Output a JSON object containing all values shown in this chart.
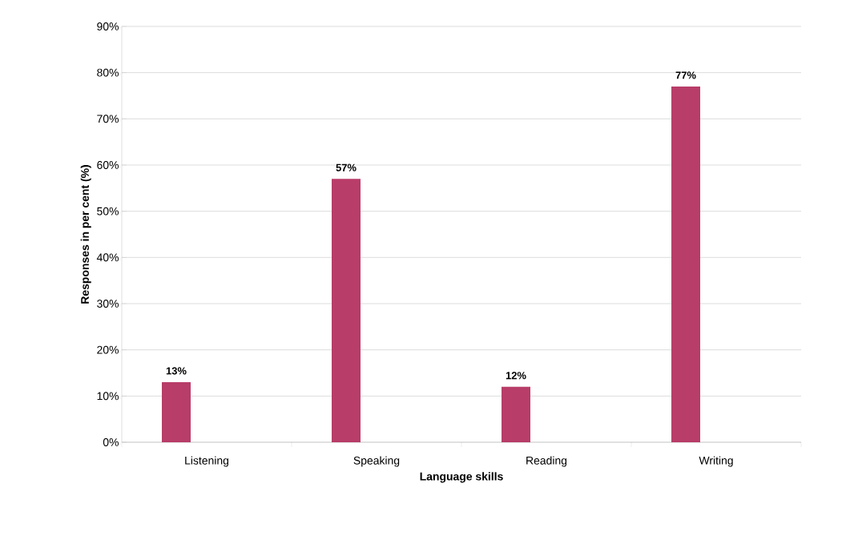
{
  "chart_data": {
    "type": "bar",
    "xlabel": "Language skills",
    "ylabel": "Responses in per cent (%)",
    "categories": [
      "Listening",
      "Speaking",
      "Reading",
      "Writing"
    ],
    "values": [
      13,
      57,
      12,
      77
    ],
    "value_labels": [
      "13%",
      "57%",
      "12%",
      "77%"
    ],
    "color": "#b83d68",
    "ylim": [
      0,
      90
    ],
    "yticks": [
      {
        "value": 0,
        "label": "0%"
      },
      {
        "value": 10,
        "label": "10%"
      },
      {
        "value": 20,
        "label": "20%"
      },
      {
        "value": 30,
        "label": "30%"
      },
      {
        "value": 40,
        "label": "40%"
      },
      {
        "value": 50,
        "label": "50%"
      },
      {
        "value": 60,
        "label": "60%"
      },
      {
        "value": 70,
        "label": "70%"
      },
      {
        "value": 80,
        "label": "80%"
      },
      {
        "value": 90,
        "label": "90%"
      }
    ],
    "grid": "y"
  }
}
